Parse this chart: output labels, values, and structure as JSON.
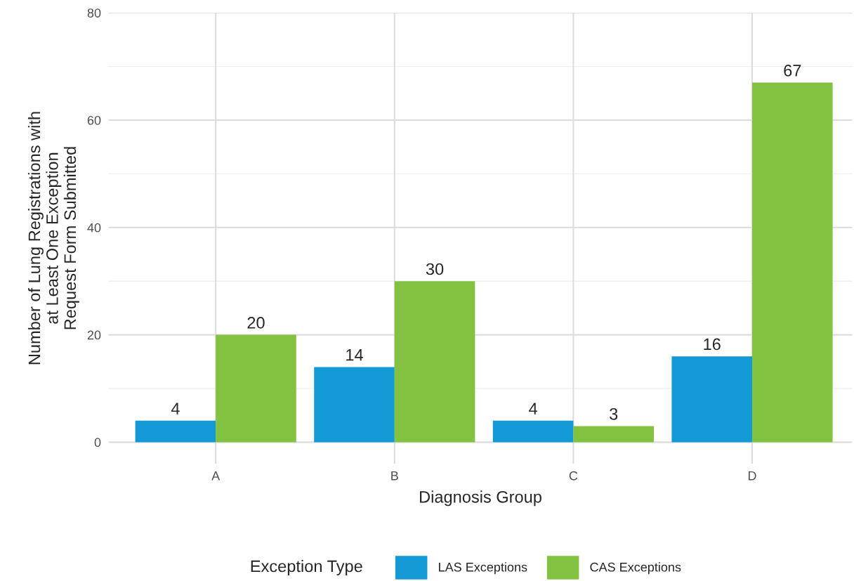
{
  "chart_data": {
    "type": "bar",
    "xlabel": "Diagnosis Group",
    "ylabel": "Number of Lung Registrations with\nat Least One Exception\nRequest Form Submitted",
    "legend_title": "Exception Type",
    "categories": [
      "A",
      "B",
      "C",
      "D"
    ],
    "series": [
      {
        "name": "LAS Exceptions",
        "color": "#1299d6",
        "values": [
          4,
          14,
          4,
          16
        ]
      },
      {
        "name": "CAS Exceptions",
        "color": "#83c241",
        "values": [
          20,
          30,
          3,
          67
        ]
      }
    ],
    "ylim": [
      -4,
      80
    ],
    "yticks": [
      0,
      20,
      40,
      60,
      80
    ],
    "grid": true,
    "legend": "bottom",
    "data_labels": true
  }
}
